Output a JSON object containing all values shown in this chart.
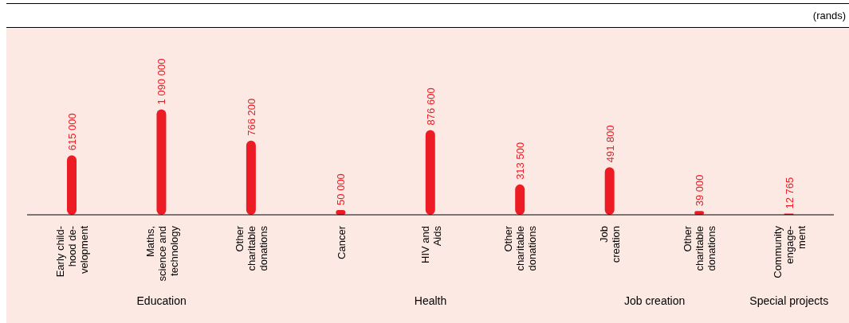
{
  "chart_data": {
    "type": "bar",
    "categories": [
      "Early child-\nhood de-\nvelopment",
      "Maths,\nscience and\ntechnology",
      "Other\ncharitable\ndonations",
      "Cancer",
      "HIV and\nAids",
      "Other\ncharitable\ndonations",
      "Job\ncreation",
      "Other\ncharitable\ndonations",
      "Community\nengage-\nment"
    ],
    "values": [
      615000,
      1090000,
      766200,
      50000,
      876600,
      313500,
      491800,
      39000,
      12765
    ],
    "value_labels": [
      "615 000",
      "1 090 000",
      "766 200",
      "50 000",
      "876 600",
      "313 500",
      "491 800",
      "39 000",
      "12 765"
    ],
    "color": "#ed1c24",
    "annotations": [
      "(rands)",
      "Education",
      "Health",
      "Job creation",
      "Special projects"
    ]
  }
}
